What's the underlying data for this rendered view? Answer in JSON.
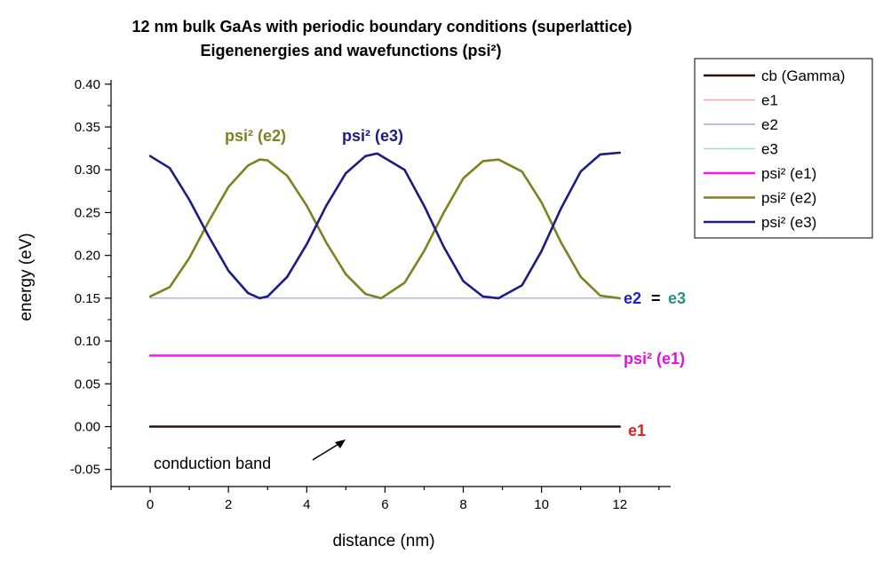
{
  "chart_data": {
    "type": "line",
    "title": "12 nm bulk GaAs with periodic boundary conditions (superlattice)",
    "subtitle": "Eigenenergies and wavefunctions (psi²)",
    "xlabel": "distance (nm)",
    "ylabel": "energy (eV)",
    "xlim": [
      -1,
      13.3
    ],
    "ylim": [
      -0.07,
      0.405
    ],
    "x_ticks": [
      0,
      2,
      4,
      6,
      8,
      10,
      12
    ],
    "x_tick_labels": [
      "0",
      "2",
      "4",
      "6",
      "8",
      "10",
      "12"
    ],
    "y_ticks": [
      -0.05,
      0.0,
      0.05,
      0.1,
      0.15,
      0.2,
      0.25,
      0.3,
      0.35,
      0.4
    ],
    "y_tick_labels": [
      "-0.05",
      "0.00",
      "0.05",
      "0.10",
      "0.15",
      "0.20",
      "0.25",
      "0.30",
      "0.35",
      "0.40"
    ],
    "grid": false,
    "legend_position": "right",
    "series": [
      {
        "name": "cb (Gamma)",
        "color": "#2a1208",
        "width": 2.6,
        "x": [
          0,
          12
        ],
        "y": [
          0.0,
          0.0
        ]
      },
      {
        "name": "e1",
        "color": "#f4a7a0",
        "width": 1.2,
        "x": [
          0,
          12
        ],
        "y": [
          0.0,
          0.0
        ]
      },
      {
        "name": "e2",
        "color": "#a9a9e8",
        "width": 1.2,
        "x": [
          0,
          12
        ],
        "y": [
          0.15,
          0.15
        ]
      },
      {
        "name": "e3",
        "color": "#9fd8d4",
        "width": 1.2,
        "x": [
          0,
          12
        ],
        "y": [
          0.15,
          0.15
        ]
      },
      {
        "name": "psi² (e1)",
        "color": "#ff10ff",
        "width": 2.6,
        "x": [
          0,
          12
        ],
        "y": [
          0.083,
          0.083
        ]
      },
      {
        "name": "psi² (e2)",
        "color": "#808020",
        "width": 2.6,
        "x": [
          0,
          0.5,
          1.0,
          1.5,
          2.0,
          2.5,
          2.8,
          3.0,
          3.5,
          4.0,
          4.5,
          5.0,
          5.5,
          5.9,
          6.5,
          7.0,
          7.5,
          8.0,
          8.5,
          8.9,
          9.5,
          10.0,
          10.5,
          11.0,
          11.5,
          12.0
        ],
        "y": [
          0.152,
          0.163,
          0.197,
          0.24,
          0.28,
          0.305,
          0.312,
          0.311,
          0.293,
          0.258,
          0.215,
          0.178,
          0.155,
          0.15,
          0.168,
          0.205,
          0.25,
          0.29,
          0.31,
          0.312,
          0.298,
          0.262,
          0.215,
          0.175,
          0.153,
          0.15
        ]
      },
      {
        "name": "psi² (e3)",
        "color": "#1c1c82",
        "width": 2.6,
        "x": [
          0,
          0.5,
          1.0,
          1.5,
          2.0,
          2.5,
          2.8,
          3.0,
          3.5,
          4.0,
          4.5,
          5.0,
          5.5,
          5.8,
          6.5,
          7.0,
          7.5,
          8.0,
          8.5,
          8.9,
          9.5,
          10.0,
          10.5,
          11.0,
          11.5,
          12.0
        ],
        "y": [
          0.316,
          0.302,
          0.265,
          0.222,
          0.182,
          0.156,
          0.15,
          0.152,
          0.175,
          0.213,
          0.258,
          0.296,
          0.316,
          0.319,
          0.3,
          0.258,
          0.21,
          0.17,
          0.152,
          0.15,
          0.165,
          0.205,
          0.255,
          0.298,
          0.318,
          0.32
        ]
      }
    ],
    "annotations": {
      "psi2_e2": {
        "text": "psi² (e2)",
        "color": "#808020"
      },
      "psi2_e3": {
        "text": "psi² (e3)",
        "color": "#1c1c82"
      },
      "e2": {
        "text": "e2",
        "color": "#2020c0"
      },
      "equals": {
        "text": "=",
        "color": "#000000"
      },
      "e3": {
        "text": "e3",
        "color": "#2a8f8a"
      },
      "psi2_e1": {
        "text": "psi² (e1)",
        "color": "#e010e0"
      },
      "e1": {
        "text": "e1",
        "color": "#e02020"
      },
      "conduction_band": {
        "text": "conduction band",
        "color": "#000000"
      }
    }
  }
}
